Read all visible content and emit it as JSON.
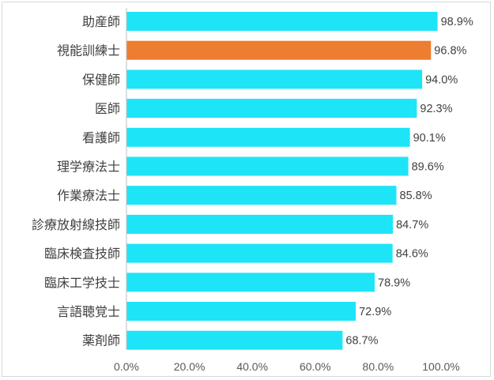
{
  "chart_data": {
    "type": "bar",
    "orientation": "horizontal",
    "categories": [
      "助産師",
      "視能訓練士",
      "保健師",
      "医師",
      "看護師",
      "理学療法士",
      "作業療法士",
      "診療放射線技師",
      "臨床検査技師",
      "臨床工学技士",
      "言語聴覚士",
      "薬剤師"
    ],
    "values": [
      98.9,
      96.8,
      94.0,
      92.3,
      90.1,
      89.6,
      85.8,
      84.7,
      84.6,
      78.9,
      72.9,
      68.7
    ],
    "value_labels": [
      "98.9%",
      "96.8%",
      "94.0%",
      "92.3%",
      "90.1%",
      "89.6%",
      "85.8%",
      "84.7%",
      "84.6%",
      "78.9%",
      "72.9%",
      "68.7%"
    ],
    "highlight_index": 1,
    "xlim": [
      0,
      100
    ],
    "x_ticks": [
      0,
      20,
      40,
      60,
      80,
      100
    ],
    "x_tick_labels": [
      "0.0%",
      "20.0%",
      "40.0%",
      "60.0%",
      "80.0%",
      "100.0%"
    ],
    "grid": false,
    "title": "",
    "xlabel": "",
    "ylabel": "",
    "colors": {
      "bar": "#1ee4f7",
      "highlight": "#ed7d31",
      "text": "#404040",
      "axis": "#bfbfbf"
    }
  }
}
